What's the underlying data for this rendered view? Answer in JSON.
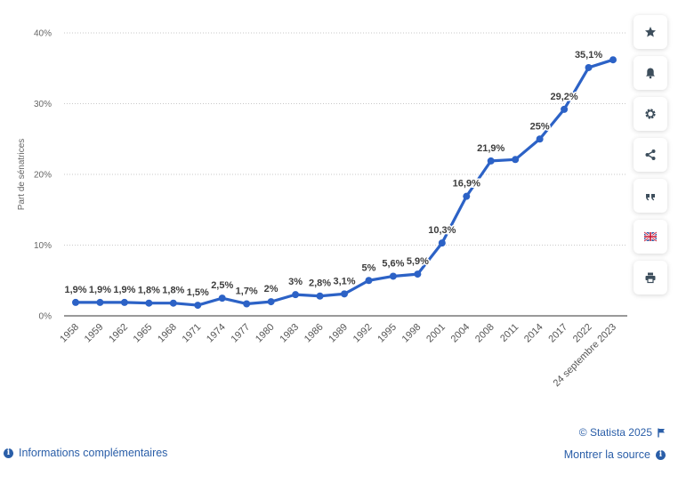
{
  "chart_data": {
    "type": "line",
    "ylabel": "Part de sénatrices",
    "xlabel": "",
    "ylim": [
      0,
      40
    ],
    "yticks": [
      "0%",
      "10%",
      "20%",
      "30%",
      "40%"
    ],
    "grid": true,
    "categories": [
      "1958",
      "1959",
      "1962",
      "1965",
      "1968",
      "1971",
      "1974",
      "1977",
      "1980",
      "1983",
      "1986",
      "1989",
      "1992",
      "1995",
      "1998",
      "2001",
      "2004",
      "2008",
      "2011",
      "2014",
      "2017",
      "2022",
      "24 septembre 2023"
    ],
    "values": [
      1.9,
      1.9,
      1.9,
      1.8,
      1.8,
      1.5,
      2.5,
      1.7,
      2.0,
      3.0,
      2.8,
      3.1,
      5.0,
      5.6,
      5.9,
      10.3,
      16.9,
      21.9,
      22.1,
      25.0,
      29.2,
      35.1,
      36.2
    ],
    "data_labels": [
      "1,9%",
      "1,9%",
      "1,9%",
      "1,8%",
      "1,8%",
      "1,5%",
      "2,5%",
      "1,7%",
      "2%",
      "3%",
      "2,8%",
      "3,1%",
      "5%",
      "5,6%",
      "5,9%",
      "10,3%",
      "16,9%",
      "21,9%",
      "",
      "25%",
      "29,2%",
      "35,1%",
      ""
    ],
    "series_color": "#2c62c6"
  },
  "sidebar": {
    "buttons": [
      {
        "name": "star-icon"
      },
      {
        "name": "bell-icon"
      },
      {
        "name": "gear-icon"
      },
      {
        "name": "share-icon"
      },
      {
        "name": "quote-icon"
      },
      {
        "name": "flag-uk-icon"
      },
      {
        "name": "print-icon"
      }
    ]
  },
  "footer": {
    "credit": "© Statista 2025",
    "more_info": "Informations complémentaires",
    "show_source": "Montrer la source"
  }
}
